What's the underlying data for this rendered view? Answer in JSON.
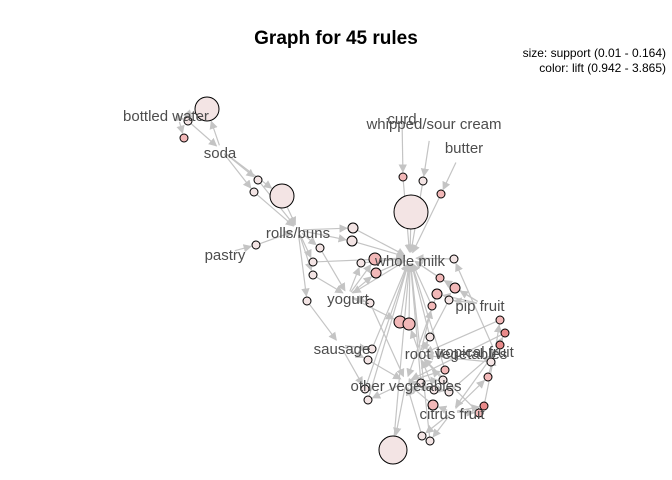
{
  "title": "Graph for 45 rules",
  "legend": {
    "size": "size: support (0.01 - 0.164)",
    "color": "color: lift (0.942 - 3.865)"
  },
  "colors": {
    "edge": "#c4c4c4",
    "label": "#4d4d4d",
    "node_low_lift": "#f3e4e4",
    "node_mid_lift": "#f2b8b8",
    "node_high_lift": "#e88a8a",
    "node_stroke": "#000000"
  },
  "items": [
    "bottled water",
    "soda",
    "curd",
    "whipped/sour cream",
    "butter",
    "rolls/buns",
    "pastry",
    "whole milk",
    "yogurt",
    "pip fruit",
    "sausage",
    "root vegetables",
    "tropical fruit",
    "other vegetables",
    "citrus fruit"
  ]
}
